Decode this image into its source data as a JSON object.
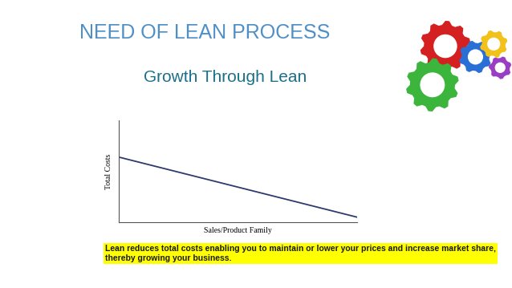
{
  "title": "NEED OF LEAN PROCESS",
  "chart_data": {
    "type": "line",
    "title": "Growth Through Lean",
    "x_label": "Sales/Product Family",
    "y_label": "Total Costs",
    "x": [
      0,
      10
    ],
    "values": [
      6.4,
      0.5
    ],
    "color": "#2e3a6e",
    "xlim": [
      0,
      10
    ],
    "ylim": [
      0,
      10
    ],
    "tick_labels": false,
    "annotation": "Lean reduces total costs enabling you to maintain or lower your prices and increase market share, thereby growing your business."
  }
}
